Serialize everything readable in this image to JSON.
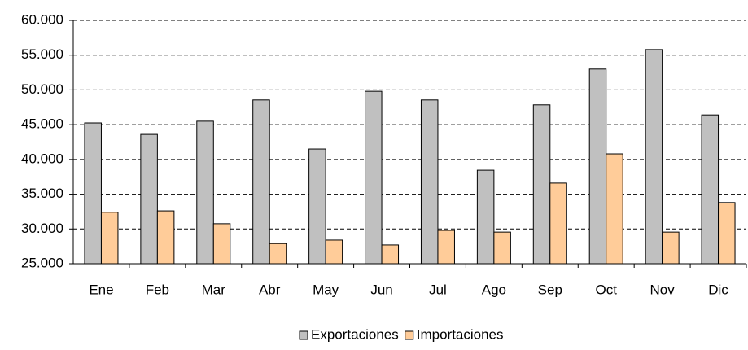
{
  "chart_data": {
    "type": "bar",
    "categories": [
      "Ene",
      "Feb",
      "Mar",
      "Abr",
      "May",
      "Jun",
      "Jul",
      "Ago",
      "Sep",
      "Oct",
      "Nov",
      "Dic"
    ],
    "series": [
      {
        "name": "Exportaciones",
        "color": "#c0c0c0",
        "values": [
          45250,
          43600,
          45500,
          48550,
          41500,
          49800,
          48550,
          38450,
          47850,
          53000,
          55800,
          46400
        ]
      },
      {
        "name": "Importaciones",
        "color": "#ffcc99",
        "values": [
          32400,
          32600,
          30750,
          27900,
          28400,
          27700,
          29800,
          29550,
          36600,
          40800,
          29550,
          33800
        ]
      }
    ],
    "ylim": [
      25000,
      60000
    ],
    "yticks": [
      {
        "value": 25000,
        "label": "25.000"
      },
      {
        "value": 30000,
        "label": "30.000"
      },
      {
        "value": 35000,
        "label": "35.000"
      },
      {
        "value": 40000,
        "label": "40.000"
      },
      {
        "value": 45000,
        "label": "45.000"
      },
      {
        "value": 50000,
        "label": "50.000"
      },
      {
        "value": 55000,
        "label": "55.000"
      },
      {
        "value": 60000,
        "label": "60.000"
      }
    ],
    "grid": true,
    "legend": "bottom"
  }
}
